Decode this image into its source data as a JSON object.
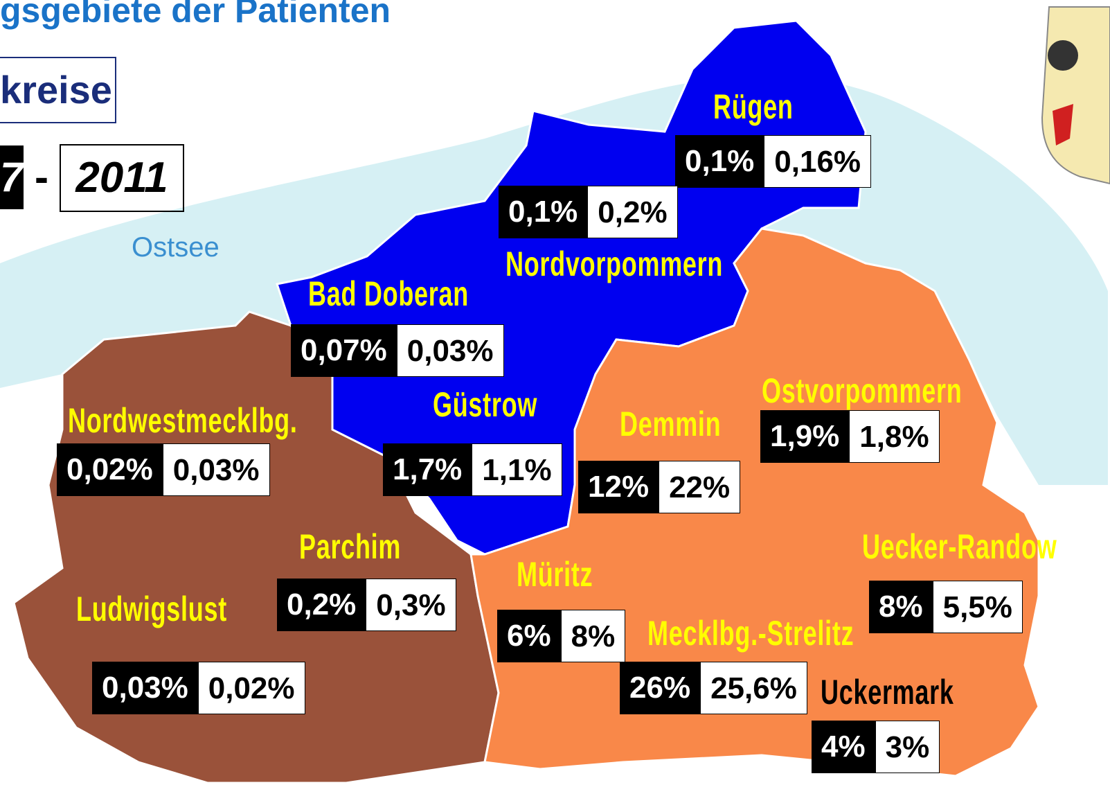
{
  "header": {
    "title": "gsgebiete der Patienten",
    "subtitle": "kreise",
    "year_from": "7",
    "separator": "-",
    "year_to": "2011"
  },
  "sea_label": "Ostsee",
  "regions": [
    {
      "name": "Rügen",
      "left": "0,1%",
      "right": "0,16%"
    },
    {
      "name": "Nordvorpommern",
      "left": "0,1%",
      "right": "0,2%"
    },
    {
      "name": "Bad Doberan",
      "left": "0,07%",
      "right": "0,03%"
    },
    {
      "name": "Güstrow",
      "left": "1,7%",
      "right": "1,1%"
    },
    {
      "name": "Nordwestmecklbg.",
      "left": "0,02%",
      "right": "0,03%"
    },
    {
      "name": "Demmin",
      "left": "12%",
      "right": "22%"
    },
    {
      "name": "Ostvorpommern",
      "left": "1,9%",
      "right": "1,8%"
    },
    {
      "name": "Parchim",
      "left": "0,2%",
      "right": "0,3%"
    },
    {
      "name": "Ludwigslust",
      "left": "0,03%",
      "right": "0,02%"
    },
    {
      "name": "Müritz",
      "left": "6%",
      "right": "8%"
    },
    {
      "name": "Mecklbg.-Strelitz",
      "left": "26%",
      "right": "25,6%"
    },
    {
      "name": "Uecker-Randow",
      "left": "8%",
      "right": "5,5%"
    },
    {
      "name": "Uckermark",
      "left": "4%",
      "right": "3%"
    }
  ]
}
